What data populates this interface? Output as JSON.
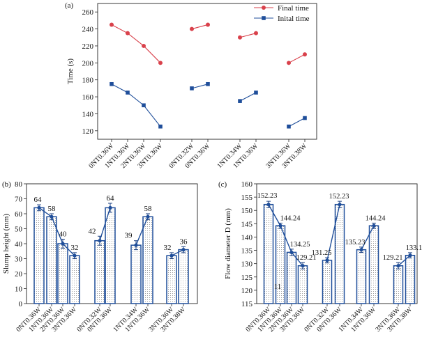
{
  "chart_data": [
    {
      "panel": "(a)",
      "type": "line",
      "ylabel": "Time (s)",
      "ylim": [
        110,
        270
      ],
      "yticks": [
        120,
        140,
        160,
        180,
        200,
        220,
        240,
        260
      ],
      "categories": [
        "0NT0.36W",
        "1NT0.36W",
        "2NT0.36W",
        "3NT0.36W",
        "0NT0.32W",
        "0NT0.36W",
        "1NT0.34W",
        "1NT0.36W",
        "3NT0.36W",
        "3NT0.38W"
      ],
      "groups": [
        [
          0,
          1,
          2,
          3
        ],
        [
          4,
          5
        ],
        [
          6,
          7
        ],
        [
          8,
          9
        ]
      ],
      "legend_position": "top-right",
      "series": [
        {
          "name": "Final time",
          "marker": "circle",
          "color": "#d9414b",
          "values": [
            245,
            235,
            220,
            200,
            240,
            245,
            230,
            235,
            200,
            210
          ]
        },
        {
          "name": "Inital time",
          "marker": "square",
          "color": "#1f4e9a",
          "values": [
            175,
            165,
            150,
            125,
            170,
            175,
            155,
            165,
            125,
            135
          ]
        }
      ]
    },
    {
      "panel": "(b)",
      "type": "bar",
      "ylabel": "Slump height (mm)",
      "ylim": [
        0,
        80
      ],
      "yticks": [
        0,
        10,
        20,
        30,
        40,
        50,
        60,
        70,
        80
      ],
      "categories": [
        "0NT0.36W",
        "1NT0.36W",
        "2NT0.36W",
        "3NT0.36W",
        "0NT0.32W",
        "0NT0.36W",
        "1NT0.34W",
        "1NT0.36W",
        "3NT0.36W",
        "3NT0.38W"
      ],
      "groups": [
        [
          0,
          1,
          2,
          3
        ],
        [
          4,
          5
        ],
        [
          6,
          7
        ],
        [
          8,
          9
        ]
      ],
      "values": [
        64,
        58,
        40,
        32,
        42,
        64,
        39,
        58,
        32,
        36
      ],
      "errors": [
        2,
        2,
        3,
        2,
        3,
        3,
        3,
        2,
        2,
        2
      ],
      "labels": [
        "64",
        "58",
        "40",
        "32",
        "42",
        "64",
        "39",
        "58",
        "32",
        "36"
      ],
      "bar_color": "#1f4e9a"
    },
    {
      "panel": "(c)",
      "type": "bar",
      "ylabel": "Flow diameter D (mm)",
      "ylim": [
        115,
        160
      ],
      "yticks": [
        115,
        120,
        125,
        130,
        135,
        140,
        145,
        150,
        155,
        160
      ],
      "categories": [
        "0NT0.36W",
        "1NT0.36W",
        "2NT0.36W",
        "3NT0.36W",
        "0NT0.32W",
        "0NT0.36W",
        "1NT0.34W",
        "1NT0.36W",
        "3NT0.36W",
        "3NT0.38W"
      ],
      "groups": [
        [
          0,
          1,
          2,
          3
        ],
        [
          4,
          5
        ],
        [
          6,
          7
        ],
        [
          8,
          9
        ]
      ],
      "values": [
        152.23,
        144.24,
        134.25,
        129.21,
        131.25,
        152.23,
        135.23,
        144.24,
        129.21,
        133.12
      ],
      "errors": [
        1.2,
        1.0,
        1.2,
        1.2,
        1.0,
        1.2,
        1.0,
        1.0,
        1.2,
        1.0
      ],
      "labels": [
        "152.23",
        "144.24",
        "134.25",
        "129.21",
        "131.25",
        "152.23",
        "135.23",
        "144.24",
        "129.21",
        "133.12"
      ],
      "annotation": "11",
      "bar_color": "#1f4e9a"
    }
  ]
}
